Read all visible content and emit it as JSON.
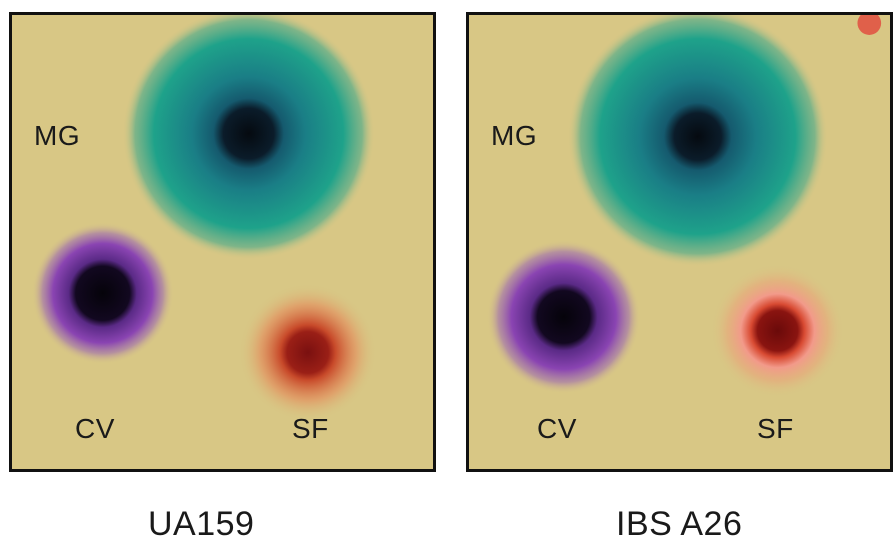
{
  "panels": [
    {
      "caption": "UA159",
      "spot_labels": {
        "mg": "MG",
        "cv": "CV",
        "sf": "SF"
      }
    },
    {
      "caption": "IBS A26",
      "spot_labels": {
        "mg": "MG",
        "cv": "CV",
        "sf": "SF"
      }
    }
  ],
  "colors": {
    "agar": "#d8c785",
    "malachite_green": "#1f9e86",
    "crystal_violet": "#7a3aa8",
    "safranin": "#d9532c",
    "border": "#111111"
  }
}
